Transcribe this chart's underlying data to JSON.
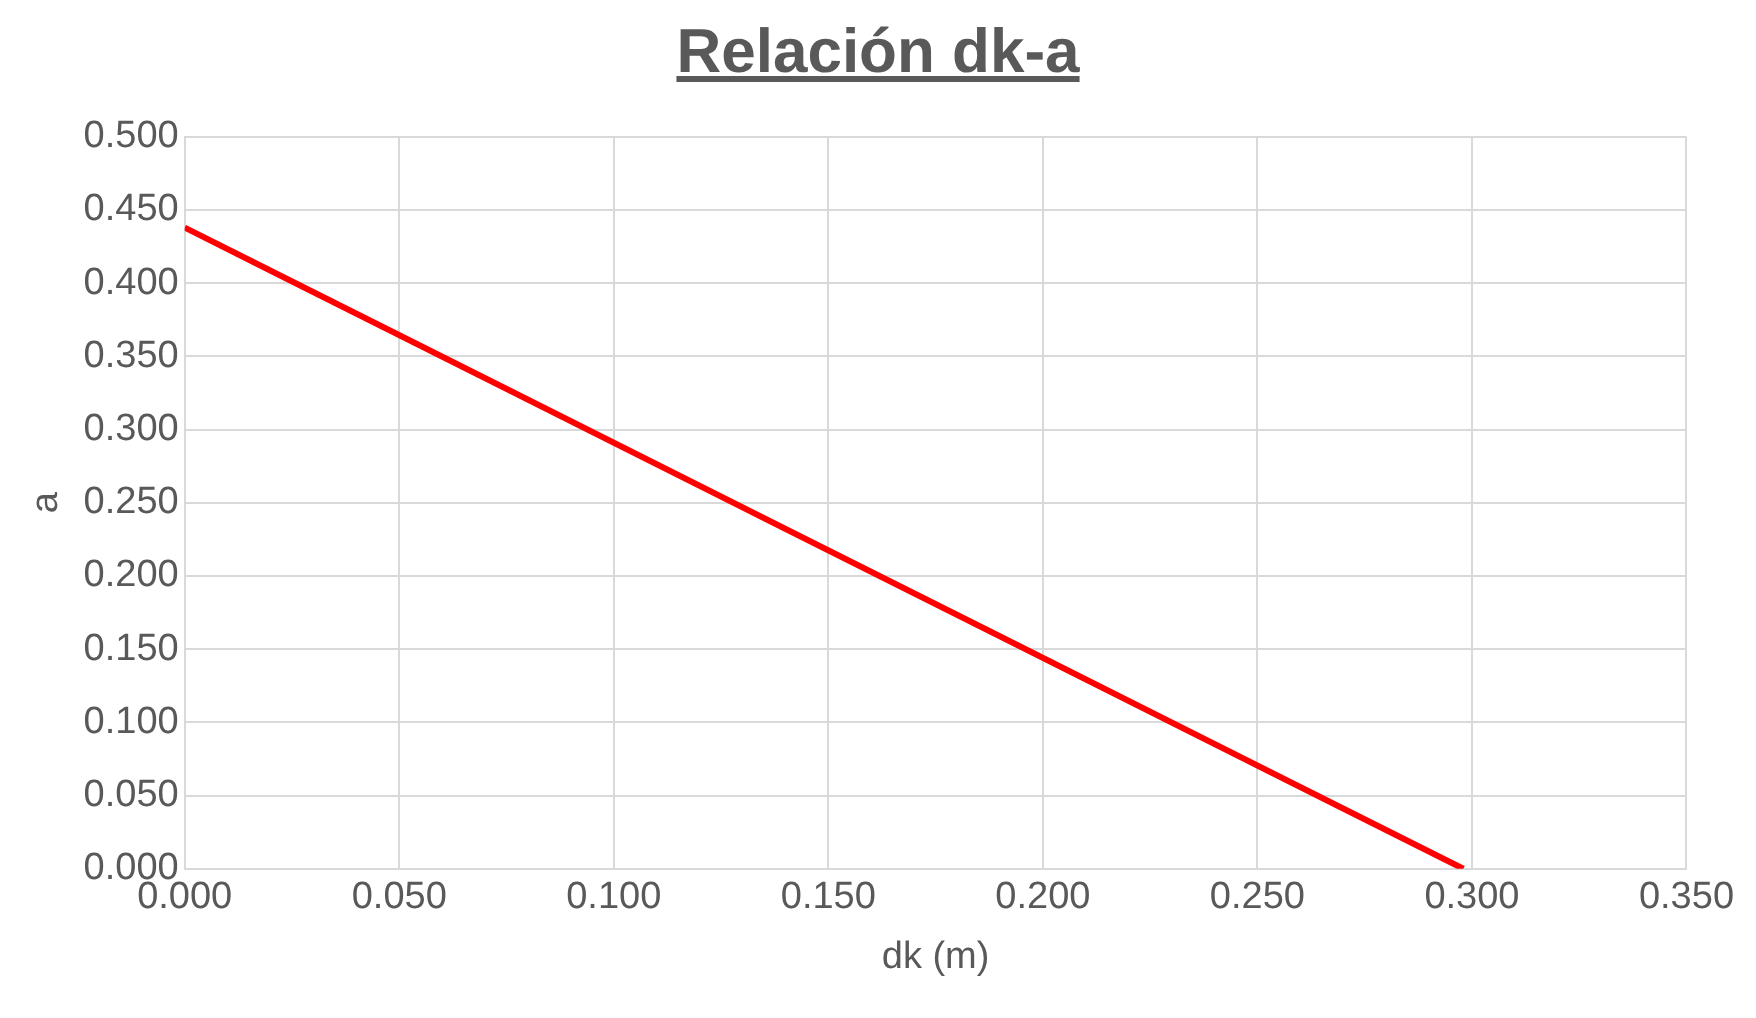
{
  "chart_data": {
    "type": "line",
    "title": "Relación dk-a",
    "xlabel": "dk (m)",
    "ylabel": "a",
    "series": [
      {
        "color": "#ff0000",
        "x": [
          0,
          0.298
        ],
        "values": [
          0.438,
          0
        ]
      }
    ],
    "xlim": [
      0,
      0.35
    ],
    "ylim": [
      0,
      0.5
    ],
    "xticks": [
      {
        "value": 0,
        "label": "0.000"
      },
      {
        "value": 0.05,
        "label": "0.050"
      },
      {
        "value": 0.1,
        "label": "0.100"
      },
      {
        "value": 0.15,
        "label": "0.150"
      },
      {
        "value": 0.2,
        "label": "0.200"
      },
      {
        "value": 0.25,
        "label": "0.250"
      },
      {
        "value": 0.3,
        "label": "0.300"
      },
      {
        "value": 0.35,
        "label": "0.350"
      }
    ],
    "yticks": [
      {
        "value": 0,
        "label": "0.000"
      },
      {
        "value": 0.05,
        "label": "0.050"
      },
      {
        "value": 0.1,
        "label": "0.100"
      },
      {
        "value": 0.15,
        "label": "0.150"
      },
      {
        "value": 0.2,
        "label": "0.200"
      },
      {
        "value": 0.25,
        "label": "0.250"
      },
      {
        "value": 0.3,
        "label": "0.300"
      },
      {
        "value": 0.35,
        "label": "0.350"
      },
      {
        "value": 0.4,
        "label": "0.400"
      },
      {
        "value": 0.45,
        "label": "0.450"
      },
      {
        "value": 0.5,
        "label": "0.500"
      }
    ],
    "grid": true,
    "legend": false,
    "marker": "none",
    "line_style": "solid"
  }
}
